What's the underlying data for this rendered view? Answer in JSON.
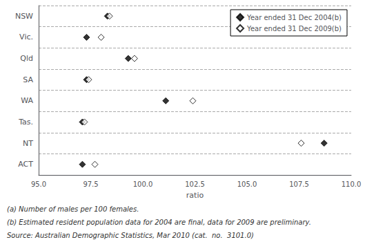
{
  "chart_data": {
    "type": "scatter",
    "categories": [
      "NSW",
      "Vic.",
      "Qld",
      "SA",
      "WA",
      "Tas.",
      "NT",
      "ACT"
    ],
    "series": [
      {
        "name": "Year ended 31 Dec 2004(b)",
        "color": "#000000",
        "marker": "diamond",
        "values": [
          98.3,
          97.3,
          99.3,
          97.3,
          101.1,
          97.1,
          108.7,
          97.1
        ]
      },
      {
        "name": "Year ended 31 Dec 2009(b)",
        "color": "#ffffff",
        "marker": "diamond",
        "values": [
          98.4,
          98.0,
          99.6,
          97.4,
          102.4,
          97.2,
          107.6,
          97.7
        ]
      }
    ],
    "xlabel": "ratio",
    "xlim": [
      95.0,
      110.0
    ],
    "xticks": [
      {
        "value": 95.0,
        "label": "95.0"
      },
      97.5,
      {
        "value": 100.0,
        "label": "100.0"
      },
      102.5,
      {
        "value": 105.0,
        "label": "105.0"
      },
      107.5,
      {
        "value": 110.0,
        "label": "110.0"
      }
    ],
    "grid": true,
    "legend": "upper right",
    "annotations": [
      "(a) Number of males per 100 females.",
      "(b) Estimated resident population data for 2004 are final, data for 2009 are preliminary.",
      "Source: Australian Demographic Statistics, Mar 2010 (cat.  no.  3101.0)"
    ]
  }
}
